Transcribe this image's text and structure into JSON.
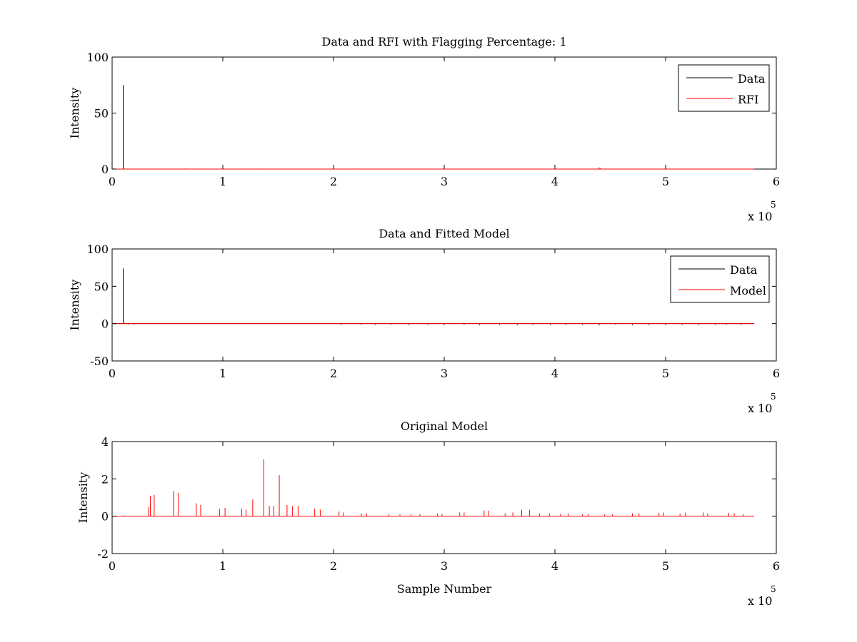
{
  "colors": {
    "data": "#000000",
    "rfi": "#ff0000",
    "model": "#ff0000",
    "axes": "#000000",
    "background": "#ffffff"
  },
  "chart_data": [
    {
      "type": "line",
      "title": "Data and RFI with Flagging Percentage: 1",
      "xlabel": "",
      "ylabel": "Intensity",
      "xlim": [
        0,
        600000
      ],
      "ylim": [
        0,
        100
      ],
      "xticks": [
        0,
        1,
        2,
        3,
        4,
        5,
        6
      ],
      "xtick_labels": [
        "0",
        "1",
        "2",
        "3",
        "4",
        "5",
        "6"
      ],
      "yticks": [
        0,
        50,
        100
      ],
      "ytick_labels": [
        "0",
        "50",
        "100"
      ],
      "x_multiplier": {
        "base": "x 10",
        "exponent": "5"
      },
      "legend": {
        "position": "top-right",
        "entries": [
          "Data",
          "RFI"
        ]
      },
      "grid": false,
      "series": [
        {
          "name": "Data",
          "color": "#000000",
          "baseline": 0,
          "xmax": 580000,
          "spikes": [
            {
              "x": 10000,
              "y": 75
            }
          ]
        },
        {
          "name": "RFI",
          "color": "#ff0000",
          "baseline": 0,
          "xmax": 580000,
          "spikes": [
            {
              "x": 66000,
              "y": 0.5
            },
            {
              "x": 137000,
              "y": 0.4
            },
            {
              "x": 219000,
              "y": 0.4
            },
            {
              "x": 440000,
              "y": 1.5
            },
            {
              "x": 441000,
              "y": 1.0
            }
          ]
        }
      ]
    },
    {
      "type": "line",
      "title": "Data and Fitted Model",
      "xlabel": "",
      "ylabel": "Intensity",
      "xlim": [
        0,
        600000
      ],
      "ylim": [
        -50,
        100
      ],
      "xticks": [
        0,
        1,
        2,
        3,
        4,
        5,
        6
      ],
      "xtick_labels": [
        "0",
        "1",
        "2",
        "3",
        "4",
        "5",
        "6"
      ],
      "yticks": [
        -50,
        0,
        50,
        100
      ],
      "ytick_labels": [
        "-50",
        "0",
        "50",
        "100"
      ],
      "x_multiplier": {
        "base": "x 10",
        "exponent": "5"
      },
      "legend": {
        "position": "top-right",
        "entries": [
          "Data",
          "Model"
        ]
      },
      "grid": false,
      "series": [
        {
          "name": "Data",
          "color": "#000000",
          "baseline": 0,
          "xmax": 580000,
          "spikes": [
            {
              "x": 10000,
              "y": 74
            },
            {
              "x": 15000,
              "y": -1
            },
            {
              "x": 20000,
              "y": -1
            },
            {
              "x": 207000,
              "y": -1.5
            },
            {
              "x": 225000,
              "y": -1.2
            },
            {
              "x": 238000,
              "y": -1.5
            },
            {
              "x": 252000,
              "y": -1.2
            },
            {
              "x": 268000,
              "y": -1.5
            },
            {
              "x": 285000,
              "y": -1.2
            },
            {
              "x": 300000,
              "y": -1.8
            },
            {
              "x": 318000,
              "y": -1.5
            },
            {
              "x": 332000,
              "y": -1.8
            },
            {
              "x": 350000,
              "y": -1.5
            },
            {
              "x": 366000,
              "y": -1.8
            },
            {
              "x": 380000,
              "y": -1.5
            },
            {
              "x": 396000,
              "y": -2
            },
            {
              "x": 410000,
              "y": -1.8
            },
            {
              "x": 425000,
              "y": -1.8
            },
            {
              "x": 440000,
              "y": -2
            },
            {
              "x": 455000,
              "y": -1.5
            },
            {
              "x": 470000,
              "y": -1.8
            },
            {
              "x": 485000,
              "y": -1.5
            },
            {
              "x": 500000,
              "y": -1.8
            },
            {
              "x": 515000,
              "y": -1.5
            },
            {
              "x": 530000,
              "y": -1.5
            },
            {
              "x": 545000,
              "y": -1.5
            },
            {
              "x": 555000,
              "y": -1.2
            },
            {
              "x": 568000,
              "y": -1.5
            }
          ]
        },
        {
          "name": "Model",
          "color": "#ff0000",
          "baseline": 0,
          "xmax": 580000,
          "spikes": []
        }
      ]
    },
    {
      "type": "line",
      "title": "Original Model",
      "xlabel": "Sample Number",
      "ylabel": "Intensity",
      "xlim": [
        0,
        600000
      ],
      "ylim": [
        -2,
        4
      ],
      "xticks": [
        0,
        1,
        2,
        3,
        4,
        5,
        6
      ],
      "xtick_labels": [
        "0",
        "1",
        "2",
        "3",
        "4",
        "5",
        "6"
      ],
      "yticks": [
        -2,
        0,
        2,
        4
      ],
      "ytick_labels": [
        "-2",
        "0",
        "2",
        "4"
      ],
      "x_multiplier": {
        "base": "x 10",
        "exponent": "5"
      },
      "legend": null,
      "grid": false,
      "series": [
        {
          "name": "Model",
          "color": "#ff0000",
          "baseline": 0,
          "xmax": 580000,
          "spikes": [
            {
              "x": 10000,
              "y": 0.05
            },
            {
              "x": 33000,
              "y": 0.5
            },
            {
              "x": 34500,
              "y": 1.1
            },
            {
              "x": 38000,
              "y": 1.15
            },
            {
              "x": 55500,
              "y": 1.35
            },
            {
              "x": 60000,
              "y": 1.25
            },
            {
              "x": 76000,
              "y": 0.7
            },
            {
              "x": 80000,
              "y": 0.6
            },
            {
              "x": 97000,
              "y": 0.4
            },
            {
              "x": 102000,
              "y": 0.45
            },
            {
              "x": 117000,
              "y": 0.4
            },
            {
              "x": 121000,
              "y": 0.35
            },
            {
              "x": 127000,
              "y": 0.9
            },
            {
              "x": 137000,
              "y": 3.05
            },
            {
              "x": 142000,
              "y": 0.55
            },
            {
              "x": 146000,
              "y": 0.55
            },
            {
              "x": 151000,
              "y": 2.2
            },
            {
              "x": 158000,
              "y": 0.6
            },
            {
              "x": 163000,
              "y": 0.55
            },
            {
              "x": 168000,
              "y": 0.55
            },
            {
              "x": 183000,
              "y": 0.4
            },
            {
              "x": 188000,
              "y": 0.35
            },
            {
              "x": 205000,
              "y": 0.25
            },
            {
              "x": 209000,
              "y": 0.2
            },
            {
              "x": 225000,
              "y": 0.15
            },
            {
              "x": 230000,
              "y": 0.15
            },
            {
              "x": 250000,
              "y": 0.1
            },
            {
              "x": 260000,
              "y": 0.1
            },
            {
              "x": 270000,
              "y": 0.1
            },
            {
              "x": 278000,
              "y": 0.12
            },
            {
              "x": 294000,
              "y": 0.15
            },
            {
              "x": 298000,
              "y": 0.12
            },
            {
              "x": 314000,
              "y": 0.2
            },
            {
              "x": 318000,
              "y": 0.2
            },
            {
              "x": 336000,
              "y": 0.3
            },
            {
              "x": 340000,
              "y": 0.3
            },
            {
              "x": 355000,
              "y": 0.15
            },
            {
              "x": 362000,
              "y": 0.2
            },
            {
              "x": 370000,
              "y": 0.35
            },
            {
              "x": 377000,
              "y": 0.35
            },
            {
              "x": 386000,
              "y": 0.15
            },
            {
              "x": 395000,
              "y": 0.15
            },
            {
              "x": 405000,
              "y": 0.12
            },
            {
              "x": 412000,
              "y": 0.15
            },
            {
              "x": 425000,
              "y": 0.12
            },
            {
              "x": 430000,
              "y": 0.12
            },
            {
              "x": 445000,
              "y": 0.1
            },
            {
              "x": 452000,
              "y": 0.1
            },
            {
              "x": 470000,
              "y": 0.15
            },
            {
              "x": 476000,
              "y": 0.15
            },
            {
              "x": 494000,
              "y": 0.18
            },
            {
              "x": 498000,
              "y": 0.2
            },
            {
              "x": 513000,
              "y": 0.15
            },
            {
              "x": 518000,
              "y": 0.2
            },
            {
              "x": 534000,
              "y": 0.2
            },
            {
              "x": 538000,
              "y": 0.15
            },
            {
              "x": 557000,
              "y": 0.18
            },
            {
              "x": 562000,
              "y": 0.15
            },
            {
              "x": 570000,
              "y": 0.1
            }
          ]
        }
      ]
    }
  ]
}
